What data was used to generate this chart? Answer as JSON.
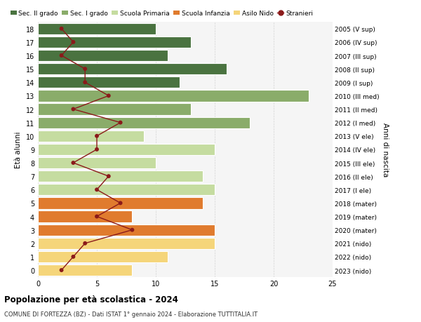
{
  "ages": [
    18,
    17,
    16,
    15,
    14,
    13,
    12,
    11,
    10,
    9,
    8,
    7,
    6,
    5,
    4,
    3,
    2,
    1,
    0
  ],
  "bar_values": [
    10,
    13,
    11,
    16,
    12,
    23,
    13,
    18,
    9,
    15,
    10,
    14,
    15,
    14,
    8,
    15,
    15,
    11,
    8
  ],
  "stranieri": [
    2,
    3,
    2,
    4,
    4,
    6,
    3,
    7,
    5,
    5,
    3,
    6,
    5,
    7,
    5,
    8,
    4,
    3,
    2
  ],
  "right_labels": [
    "2005 (V sup)",
    "2006 (IV sup)",
    "2007 (III sup)",
    "2008 (II sup)",
    "2009 (I sup)",
    "2010 (III med)",
    "2011 (II med)",
    "2012 (I med)",
    "2013 (V ele)",
    "2014 (IV ele)",
    "2015 (III ele)",
    "2016 (II ele)",
    "2017 (I ele)",
    "2018 (mater)",
    "2019 (mater)",
    "2020 (mater)",
    "2021 (nido)",
    "2022 (nido)",
    "2023 (nido)"
  ],
  "bar_colors": [
    "#4a7340",
    "#4a7340",
    "#4a7340",
    "#4a7340",
    "#4a7340",
    "#8aac6a",
    "#8aac6a",
    "#8aac6a",
    "#c5dca0",
    "#c5dca0",
    "#c5dca0",
    "#c5dca0",
    "#c5dca0",
    "#e07b2e",
    "#e07b2e",
    "#e07b2e",
    "#f5d57a",
    "#f5d57a",
    "#f5d57a"
  ],
  "legend_items": [
    {
      "label": "Sec. II grado",
      "color": "#4a7340"
    },
    {
      "label": "Sec. I grado",
      "color": "#8aac6a"
    },
    {
      "label": "Scuola Primaria",
      "color": "#c5dca0"
    },
    {
      "label": "Scuola Infanzia",
      "color": "#e07b2e"
    },
    {
      "label": "Asilo Nido",
      "color": "#f5d57a"
    },
    {
      "label": "Stranieri",
      "color": "#8b1a1a"
    }
  ],
  "ylabel_left": "Età alunni",
  "ylabel_right": "Anni di nascita",
  "title": "Popolazione per età scolastica - 2024",
  "subtitle": "COMUNE DI FORTEZZA (BZ) - Dati ISTAT 1° gennaio 2024 - Elaborazione TUTTITALIA.IT",
  "xlim": [
    0,
    25
  ],
  "stranieri_color": "#8b1a1a",
  "grid_color": "#cccccc",
  "bg_color": "#f5f5f5"
}
